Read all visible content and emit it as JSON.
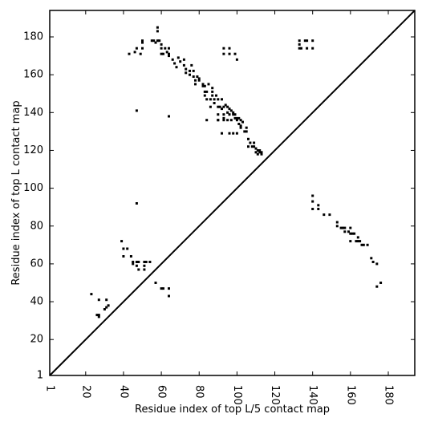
{
  "chart_data": {
    "type": "scatter",
    "title": "",
    "xlabel": "Residue index of top L/5 contact map",
    "ylabel": "Residue index of top L contact map",
    "xlim": [
      1,
      194
    ],
    "ylim": [
      1,
      194
    ],
    "x_ticks": [
      1,
      20,
      40,
      60,
      80,
      100,
      120,
      140,
      160,
      180
    ],
    "y_ticks": [
      1,
      20,
      40,
      60,
      80,
      100,
      120,
      140,
      160,
      180
    ],
    "x_tick_labels": [
      "1",
      "20",
      "40",
      "60",
      "80",
      "100",
      "120",
      "140",
      "160",
      "180"
    ],
    "y_tick_labels": [
      "1",
      "20",
      "40",
      "60",
      "80",
      "100",
      "120",
      "140",
      "160",
      "180"
    ],
    "x_tick_rotation": -90,
    "grid": false,
    "diagonal": {
      "from": [
        1,
        1
      ],
      "to": [
        194,
        194
      ]
    },
    "series": [
      {
        "marker": "square",
        "color": "#000000",
        "points": [
          [
            43,
            171
          ],
          [
            46,
            172
          ],
          [
            47,
            174
          ],
          [
            49,
            171
          ],
          [
            50,
            174
          ],
          [
            50,
            177
          ],
          [
            50,
            178
          ],
          [
            55,
            178
          ],
          [
            56,
            178
          ],
          [
            57,
            177
          ],
          [
            58,
            178
          ],
          [
            58,
            183
          ],
          [
            58,
            185
          ],
          [
            59,
            178
          ],
          [
            60,
            176
          ],
          [
            60,
            174
          ],
          [
            60,
            171
          ],
          [
            61,
            171
          ],
          [
            62,
            174
          ],
          [
            63,
            172
          ],
          [
            64,
            171
          ],
          [
            64,
            170
          ],
          [
            64,
            174
          ],
          [
            66,
            168
          ],
          [
            67,
            166
          ],
          [
            68,
            164
          ],
          [
            69,
            169
          ],
          [
            70,
            167
          ],
          [
            72,
            168
          ],
          [
            72,
            165
          ],
          [
            73,
            163
          ],
          [
            73,
            161
          ],
          [
            75,
            160
          ],
          [
            75,
            162
          ],
          [
            76,
            165
          ],
          [
            77,
            162
          ],
          [
            77,
            159
          ],
          [
            78,
            155
          ],
          [
            78,
            157
          ],
          [
            79,
            159
          ],
          [
            80,
            157
          ],
          [
            80,
            158
          ],
          [
            82,
            155
          ],
          [
            82,
            154
          ],
          [
            83,
            154
          ],
          [
            83,
            151
          ],
          [
            83,
            149
          ],
          [
            84,
            147
          ],
          [
            84,
            151
          ],
          [
            85,
            155
          ],
          [
            86,
            143
          ],
          [
            86,
            147
          ],
          [
            87,
            153
          ],
          [
            87,
            151
          ],
          [
            87,
            149
          ],
          [
            88,
            147
          ],
          [
            88,
            145
          ],
          [
            89,
            149
          ],
          [
            90,
            143
          ],
          [
            90,
            147
          ],
          [
            90,
            139
          ],
          [
            90,
            136
          ],
          [
            91,
            143
          ],
          [
            92,
            142
          ],
          [
            92,
            147
          ],
          [
            93,
            143
          ],
          [
            93,
            139
          ],
          [
            93,
            137
          ],
          [
            94,
            144
          ],
          [
            95,
            143
          ],
          [
            95,
            140
          ],
          [
            95,
            136
          ],
          [
            96,
            142
          ],
          [
            96,
            139
          ],
          [
            97,
            141
          ],
          [
            97,
            136
          ],
          [
            98,
            139
          ],
          [
            98,
            140
          ],
          [
            99,
            139
          ],
          [
            99,
            137
          ],
          [
            100,
            136
          ],
          [
            100,
            137
          ],
          [
            101,
            134
          ],
          [
            101,
            137
          ],
          [
            102,
            136
          ],
          [
            102,
            133
          ],
          [
            102,
            132
          ],
          [
            103,
            135
          ],
          [
            104,
            130
          ],
          [
            105,
            130
          ],
          [
            105,
            132
          ],
          [
            106,
            126
          ],
          [
            106,
            122
          ],
          [
            107,
            124
          ],
          [
            108,
            122
          ],
          [
            109,
            122
          ],
          [
            109,
            124
          ],
          [
            110,
            119
          ],
          [
            110,
            121
          ],
          [
            111,
            120
          ],
          [
            111,
            118
          ],
          [
            112,
            119
          ],
          [
            112,
            120
          ],
          [
            113,
            119
          ],
          [
            113,
            118
          ],
          [
            92,
            129
          ],
          [
            96,
            129
          ],
          [
            98,
            129
          ],
          [
            100,
            129
          ],
          [
            84,
            136
          ],
          [
            90,
            136
          ],
          [
            93,
            136
          ],
          [
            47,
            141
          ],
          [
            64,
            138
          ],
          [
            47,
            92
          ],
          [
            93,
            174
          ],
          [
            93,
            171
          ],
          [
            96,
            174
          ],
          [
            96,
            171
          ],
          [
            99,
            171
          ],
          [
            100,
            168
          ],
          [
            133,
            176
          ],
          [
            133,
            178
          ],
          [
            133,
            174
          ],
          [
            134,
            174
          ],
          [
            136,
            178
          ],
          [
            137,
            178
          ],
          [
            137,
            174
          ],
          [
            140,
            178
          ],
          [
            140,
            174
          ],
          [
            140,
            96
          ],
          [
            140,
            93
          ],
          [
            140,
            89
          ],
          [
            143,
            91
          ],
          [
            143,
            89
          ],
          [
            146,
            86
          ],
          [
            149,
            86
          ],
          [
            153,
            82
          ],
          [
            153,
            80
          ],
          [
            155,
            79
          ],
          [
            156,
            79
          ],
          [
            157,
            79
          ],
          [
            157,
            77
          ],
          [
            159,
            77
          ],
          [
            160,
            79
          ],
          [
            160,
            76
          ],
          [
            160,
            72
          ],
          [
            161,
            76
          ],
          [
            162,
            76
          ],
          [
            163,
            72
          ],
          [
            164,
            72
          ],
          [
            164,
            74
          ],
          [
            165,
            72
          ],
          [
            166,
            70
          ],
          [
            167,
            70
          ],
          [
            169,
            70
          ],
          [
            171,
            63
          ],
          [
            172,
            61
          ],
          [
            174,
            60
          ],
          [
            174,
            48
          ],
          [
            176,
            50
          ],
          [
            39,
            72
          ],
          [
            40,
            68
          ],
          [
            40,
            64
          ],
          [
            42,
            68
          ],
          [
            44,
            64
          ],
          [
            45,
            60
          ],
          [
            45,
            61
          ],
          [
            47,
            61
          ],
          [
            47,
            59
          ],
          [
            48,
            57
          ],
          [
            48,
            61
          ],
          [
            51,
            61
          ],
          [
            51,
            59
          ],
          [
            51,
            57
          ],
          [
            52,
            61
          ],
          [
            54,
            61
          ],
          [
            57,
            50
          ],
          [
            60,
            47
          ],
          [
            61,
            47
          ],
          [
            64,
            47
          ],
          [
            64,
            43
          ],
          [
            23,
            44
          ],
          [
            26,
            33
          ],
          [
            27,
            33
          ],
          [
            27,
            32
          ],
          [
            27,
            41
          ],
          [
            30,
            36
          ],
          [
            31,
            41
          ],
          [
            31,
            37
          ],
          [
            32,
            38
          ]
        ]
      }
    ]
  }
}
